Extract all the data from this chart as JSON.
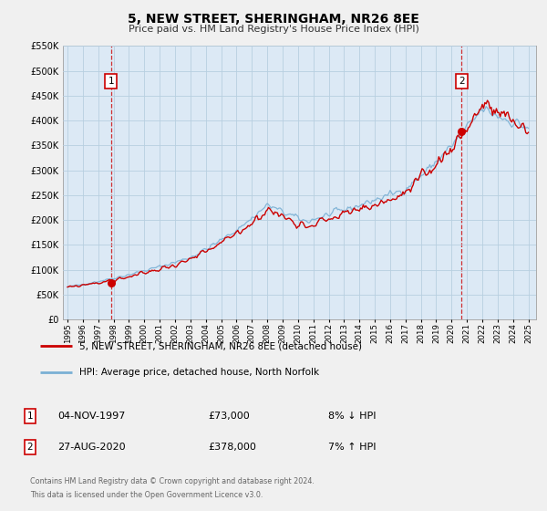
{
  "title": "5, NEW STREET, SHERINGHAM, NR26 8EE",
  "subtitle": "Price paid vs. HM Land Registry's House Price Index (HPI)",
  "legend_line1": "5, NEW STREET, SHERINGHAM, NR26 8EE (detached house)",
  "legend_line2": "HPI: Average price, detached house, North Norfolk",
  "annotation1_date": "04-NOV-1997",
  "annotation1_price": "£73,000",
  "annotation1_hpi": "8% ↓ HPI",
  "annotation2_date": "27-AUG-2020",
  "annotation2_price": "£378,000",
  "annotation2_hpi": "7% ↑ HPI",
  "footnote1": "Contains HM Land Registry data © Crown copyright and database right 2024.",
  "footnote2": "This data is licensed under the Open Government Licence v3.0.",
  "background_color": "#f0f0f0",
  "plot_background_color": "#dce9f5",
  "grid_color": "#b8cfe0",
  "hpi_line_color": "#7ab0d4",
  "price_line_color": "#cc0000",
  "vline_color": "#cc0000",
  "marker_color": "#cc0000",
  "marker1_year": 1997.84,
  "marker1_value": 73000,
  "marker2_year": 2020.65,
  "marker2_value": 378000,
  "vline1_year": 1997.84,
  "vline2_year": 2020.65,
  "ylim_min": 0,
  "ylim_max": 550000,
  "xlim_start": 1994.7,
  "xlim_end": 2025.5,
  "hpi_seed": 42,
  "price_seed": 99
}
